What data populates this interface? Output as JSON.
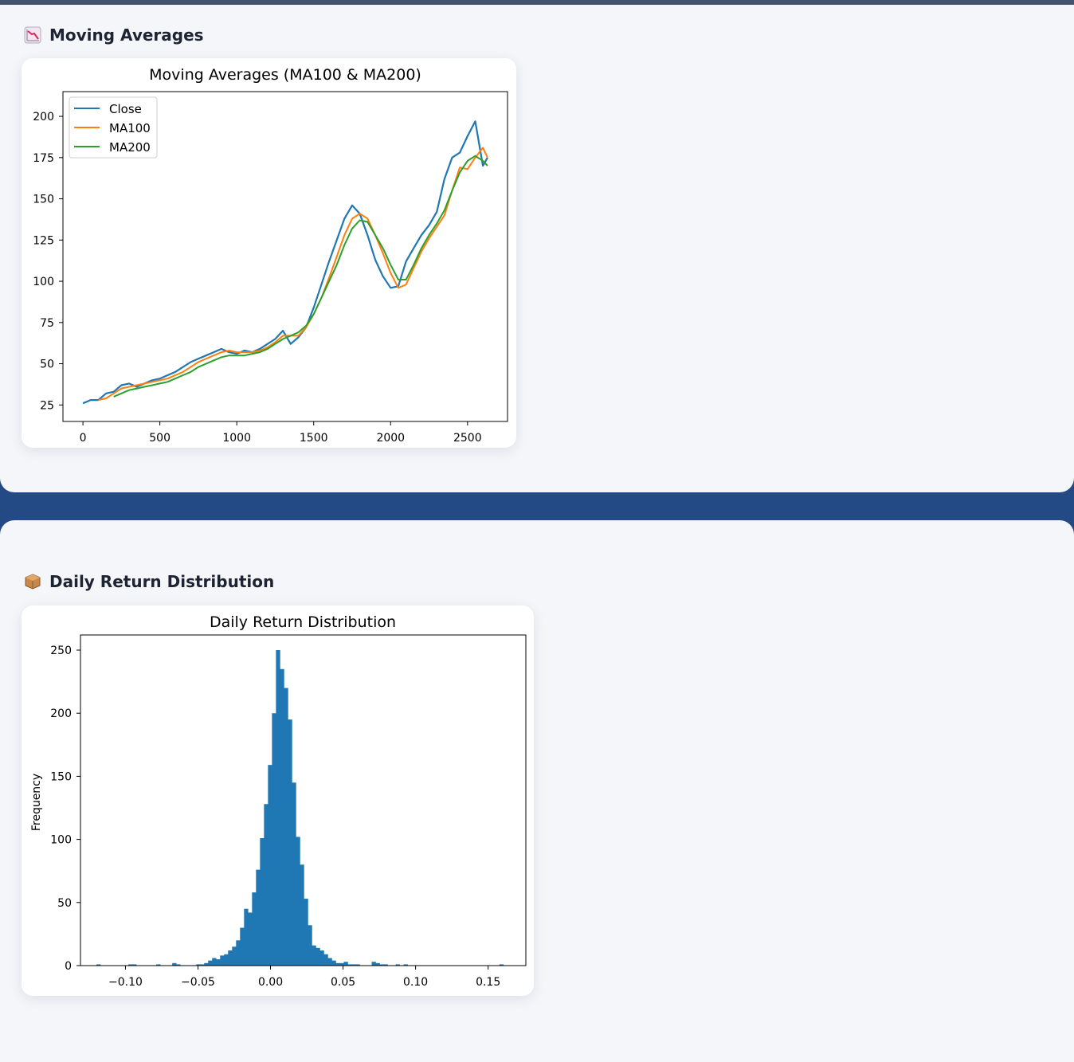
{
  "sections": [
    {
      "title": "Moving Averages",
      "icon": "chart-decreasing-icon"
    },
    {
      "title": "Daily Return Distribution",
      "icon": "package-icon"
    }
  ],
  "colors": {
    "close": "#1f77b4",
    "ma100": "#ff7f0e",
    "ma200": "#2ca02c",
    "hist": "#1f77b4",
    "panel": "#f4f6fa",
    "band": "#244a86"
  },
  "chart_data": [
    {
      "type": "line",
      "title": "Moving Averages (MA100 & MA200)",
      "xlabel": "",
      "ylabel": "",
      "xlim": [
        -130,
        2760
      ],
      "ylim": [
        15,
        215
      ],
      "xticks": [
        0,
        500,
        1000,
        1500,
        2000,
        2500
      ],
      "yticks": [
        25,
        50,
        75,
        100,
        125,
        150,
        175,
        200
      ],
      "grid": false,
      "legend": "top-left",
      "series": [
        {
          "name": "Close",
          "color": "#1f77b4",
          "x": [
            0,
            50,
            100,
            150,
            200,
            250,
            300,
            350,
            400,
            450,
            500,
            550,
            600,
            650,
            700,
            750,
            800,
            850,
            900,
            950,
            1000,
            1050,
            1100,
            1150,
            1200,
            1250,
            1300,
            1350,
            1400,
            1450,
            1500,
            1550,
            1600,
            1650,
            1700,
            1750,
            1800,
            1850,
            1900,
            1950,
            2000,
            2050,
            2100,
            2150,
            2200,
            2250,
            2300,
            2350,
            2400,
            2450,
            2500,
            2550,
            2600,
            2630
          ],
          "y": [
            26,
            28,
            28,
            32,
            33,
            37,
            38,
            36,
            38,
            40,
            41,
            43,
            45,
            48,
            51,
            53,
            55,
            57,
            59,
            57,
            56,
            58,
            57,
            59,
            62,
            65,
            70,
            62,
            66,
            72,
            84,
            98,
            112,
            125,
            138,
            146,
            141,
            128,
            113,
            103,
            96,
            97,
            112,
            120,
            128,
            134,
            142,
            162,
            175,
            178,
            188,
            197,
            170,
            175
          ]
        },
        {
          "name": "MA100",
          "color": "#ff7f0e",
          "x": [
            100,
            150,
            200,
            250,
            300,
            350,
            400,
            450,
            500,
            550,
            600,
            650,
            700,
            750,
            800,
            850,
            900,
            950,
            1000,
            1050,
            1100,
            1150,
            1200,
            1250,
            1300,
            1350,
            1400,
            1450,
            1500,
            1550,
            1600,
            1650,
            1700,
            1750,
            1800,
            1850,
            1900,
            1950,
            2000,
            2050,
            2100,
            2150,
            2200,
            2250,
            2300,
            2350,
            2400,
            2450,
            2500,
            2550,
            2600,
            2630
          ],
          "y": [
            28,
            29,
            32,
            35,
            36,
            37,
            38,
            39,
            40,
            41,
            43,
            45,
            48,
            51,
            53,
            55,
            57,
            58,
            57,
            57,
            57,
            58,
            60,
            63,
            67,
            67,
            67,
            72,
            80,
            90,
            102,
            115,
            128,
            138,
            141,
            138,
            128,
            117,
            105,
            96,
            98,
            108,
            118,
            126,
            133,
            140,
            155,
            169,
            168,
            175,
            181,
            175
          ]
        },
        {
          "name": "MA200",
          "color": "#2ca02c",
          "x": [
            200,
            250,
            300,
            350,
            400,
            450,
            500,
            550,
            600,
            650,
            700,
            750,
            800,
            850,
            900,
            950,
            1000,
            1050,
            1100,
            1150,
            1200,
            1250,
            1300,
            1350,
            1400,
            1450,
            1500,
            1550,
            1600,
            1650,
            1700,
            1750,
            1800,
            1850,
            1900,
            1950,
            2000,
            2050,
            2100,
            2150,
            2200,
            2250,
            2300,
            2350,
            2400,
            2450,
            2500,
            2550,
            2600,
            2630
          ],
          "y": [
            30,
            32,
            34,
            35,
            36,
            37,
            38,
            39,
            41,
            43,
            45,
            48,
            50,
            52,
            54,
            55,
            55,
            55,
            56,
            57,
            59,
            62,
            65,
            67,
            69,
            73,
            80,
            90,
            100,
            110,
            122,
            132,
            137,
            136,
            128,
            120,
            110,
            101,
            101,
            110,
            120,
            128,
            135,
            143,
            155,
            166,
            173,
            176,
            173,
            170
          ]
        }
      ]
    },
    {
      "type": "bar",
      "title": "Daily Return Distribution",
      "xlabel": "",
      "ylabel": "Frequency",
      "xlim": [
        -0.131,
        0.176
      ],
      "ylim": [
        0,
        262
      ],
      "xticks": [
        -0.1,
        -0.05,
        0.0,
        0.05,
        0.1,
        0.15
      ],
      "xtick_labels": [
        "−0.10",
        "−0.05",
        "0.00",
        "0.05",
        "0.10",
        "0.15"
      ],
      "yticks": [
        0,
        50,
        100,
        150,
        200,
        250
      ],
      "grid": false,
      "bin_start": -0.12,
      "bin_width": 0.00275,
      "values": [
        1,
        0,
        0,
        0,
        0,
        0,
        0,
        0,
        1,
        1,
        0,
        0,
        0,
        0,
        0,
        1,
        0,
        0,
        0,
        2,
        1,
        0,
        0,
        0,
        0,
        1,
        1,
        2,
        4,
        6,
        5,
        8,
        9,
        12,
        15,
        20,
        30,
        45,
        42,
        58,
        76,
        101,
        128,
        159,
        200,
        250,
        235,
        220,
        195,
        145,
        102,
        80,
        53,
        32,
        16,
        14,
        12,
        9,
        6,
        4,
        2,
        2,
        3,
        1,
        1,
        1,
        0,
        0,
        0,
        3,
        2,
        1,
        1,
        0,
        0,
        1,
        0,
        1,
        0,
        0,
        0,
        0,
        0,
        0,
        0,
        0,
        0,
        0,
        0,
        0,
        0,
        0,
        0,
        0,
        0,
        0,
        0,
        0,
        0,
        0,
        0,
        1
      ]
    }
  ]
}
